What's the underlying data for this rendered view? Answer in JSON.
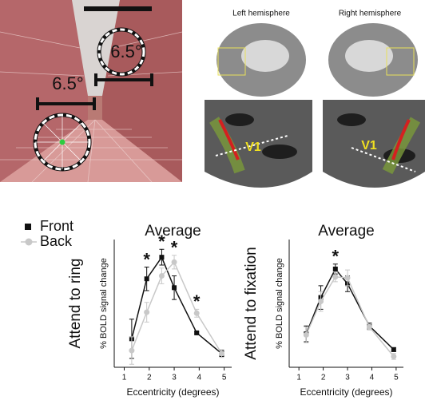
{
  "images": {
    "ring_size_near": "6.5°",
    "ring_size_far": "6.5°",
    "left_hemisphere": "Left hemisphere",
    "right_hemisphere": "Right hemisphere",
    "v1_left": "V1",
    "v1_right": "V1"
  },
  "chart_data": [
    {
      "type": "line",
      "title": "Average",
      "row_label": "Attend to ring",
      "ylabel": "% BOLD signal change",
      "xlabel": "Eccentricity (degrees)",
      "x": [
        1.3,
        1.9,
        2.5,
        3.0,
        3.9,
        4.9
      ],
      "series": [
        {
          "name": "Front",
          "color": "#111111",
          "marker": "square",
          "values": [
            0.04,
            0.65,
            0.87,
            0.56,
            0.1,
            -0.11
          ],
          "errors": [
            0.2,
            0.12,
            0.08,
            0.12,
            0.01,
            0.03
          ]
        },
        {
          "name": "Back",
          "color": "#c8c8c8",
          "marker": "circle",
          "values": [
            -0.08,
            0.31,
            0.68,
            0.82,
            0.3,
            -0.11
          ],
          "errors": [
            0.14,
            0.1,
            0.08,
            0.07,
            0.04,
            0.04
          ]
        }
      ],
      "annotations": [
        {
          "text": "*",
          "x": 1.9
        },
        {
          "text": "*",
          "x": 2.5
        },
        {
          "text": "*",
          "x": 3.0
        },
        {
          "text": "*",
          "x": 3.9
        }
      ],
      "xlim": [
        0.6,
        5.3
      ],
      "xticks": [
        1,
        2,
        3,
        4,
        5
      ],
      "ylim": [
        -0.25,
        1.05
      ]
    },
    {
      "type": "line",
      "title": "Average",
      "row_label": "Attend to fixation",
      "ylabel": "% BOLD signal change",
      "xlabel": "Eccentricity (degrees)",
      "x": [
        1.3,
        1.9,
        2.5,
        3.0,
        3.9,
        4.9
      ],
      "series": [
        {
          "color": "#111111",
          "marker": "square",
          "values": [
            0.09,
            0.46,
            0.75,
            0.6,
            0.17,
            -0.07
          ],
          "errors": [
            0.08,
            0.12,
            0.05,
            0.08,
            0.03,
            0.02
          ]
        },
        {
          "color": "#c8c8c8",
          "marker": "circle",
          "values": [
            0.08,
            0.42,
            0.67,
            0.66,
            0.16,
            -0.14
          ],
          "errors": [
            0.08,
            0.1,
            0.05,
            0.08,
            0.03,
            0.03
          ]
        }
      ],
      "annotations": [
        {
          "text": "*",
          "x": 2.5
        }
      ],
      "xlim": [
        0.6,
        5.3
      ],
      "xticks": [
        1,
        2,
        3,
        4,
        5
      ],
      "ylim": [
        -0.25,
        1.05
      ]
    }
  ]
}
